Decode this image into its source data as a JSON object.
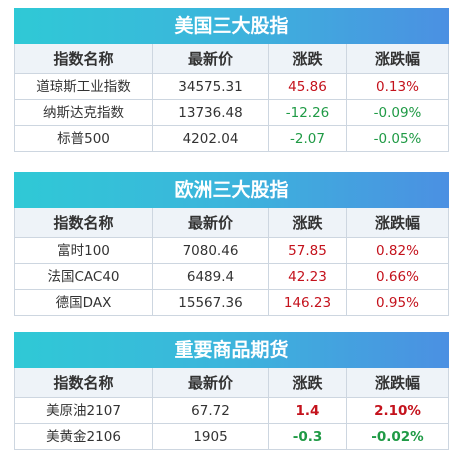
{
  "tables": [
    {
      "title": "美国三大股指",
      "columns": [
        "指数名称",
        "最新价",
        "涨跌",
        "涨跌幅"
      ],
      "rows": [
        [
          "道琼斯工业指数",
          "34575.31",
          "45.86",
          "0.13%"
        ],
        [
          "纳斯达克指数",
          "13736.48",
          "-12.26",
          "-0.09%"
        ],
        [
          "标普500",
          "4202.04",
          "-2.07",
          "-0.05%"
        ]
      ]
    },
    {
      "title": "欧洲三大股指",
      "columns": [
        "指数名称",
        "最新价",
        "涨跌",
        "涨跌幅"
      ],
      "rows": [
        [
          "富时100",
          "7080.46",
          "57.85",
          "0.82%"
        ],
        [
          "法国CAC40",
          "6489.4",
          "42.23",
          "0.66%"
        ],
        [
          "德国DAX",
          "15567.36",
          "146.23",
          "0.95%"
        ]
      ]
    },
    {
      "title": "重要商品期货",
      "columns": [
        "指数名称",
        "最新价",
        "涨跌",
        "涨跌幅"
      ],
      "rows": [
        [
          "美原油2107",
          "67.72",
          "1.4",
          "2.10%"
        ],
        [
          "美黄金2106",
          "1905",
          "-0.3",
          "-0.02%"
        ]
      ]
    }
  ]
}
